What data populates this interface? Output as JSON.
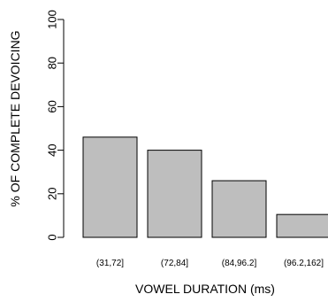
{
  "chart_data": {
    "type": "bar",
    "categories": [
      "(31,72]",
      "(72,84]",
      "(84,96.2]",
      "(96.2,162]"
    ],
    "values": [
      46,
      40,
      26,
      10.5
    ],
    "xlabel": "VOWEL DURATION (ms)",
    "ylabel": "% OF COMPLETE DEVOICING",
    "ylim": [
      0,
      100
    ],
    "yticks": [
      "0",
      "20",
      "40",
      "60",
      "80",
      "100"
    ],
    "bar_fill": "#bebebe",
    "bar_stroke": "#000000",
    "grid": false,
    "legend": "none"
  }
}
